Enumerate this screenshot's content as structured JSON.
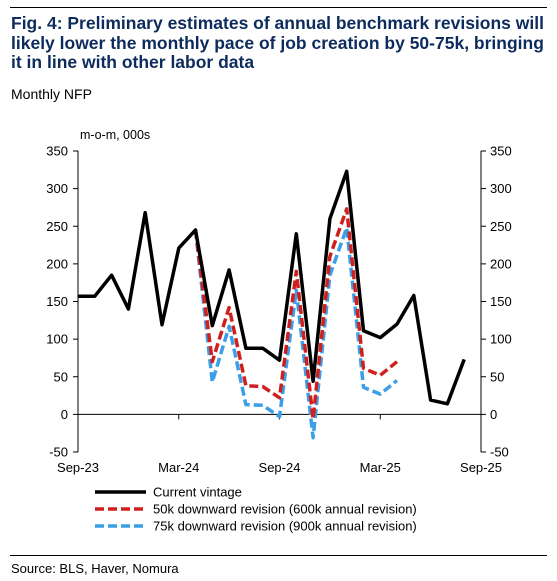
{
  "title": "Fig. 4: Preliminary estimates of annual benchmark revisions will likely lower the monthly pace of job creation by 50-75k, bringing it in line with other labor data",
  "subtitle": "Monthly NFP",
  "source": "Source: BLS, Haver, Nomura",
  "colors": {
    "title": "#0d2b5c",
    "current": "#000000",
    "rev50": "#d0201e",
    "rev75": "#3a9fe8"
  },
  "chart_data": {
    "type": "line",
    "unit_label": "m-o-m, 000s",
    "ylim": [
      -50,
      350
    ],
    "yticks": [
      -50,
      0,
      50,
      100,
      150,
      200,
      250,
      300,
      350
    ],
    "xlim": [
      "2023-09",
      "2025-09"
    ],
    "xticks": [
      "Sep-23",
      "Mar-24",
      "Sep-24",
      "Mar-25",
      "Sep-25"
    ],
    "xtick_months": [
      "2023-09",
      "2024-03",
      "2024-09",
      "2025-03",
      "2025-09"
    ],
    "grid": false,
    "legend_position": "bottom",
    "series": [
      {
        "name": "Current vintage",
        "style": "solid",
        "color": "#000000",
        "points": [
          [
            "2023-09",
            157
          ],
          [
            "2023-10",
            157
          ],
          [
            "2023-11",
            185
          ],
          [
            "2023-12",
            140
          ],
          [
            "2024-01",
            268
          ],
          [
            "2024-02",
            119
          ],
          [
            "2024-03",
            221
          ],
          [
            "2024-04",
            245
          ],
          [
            "2024-05",
            118
          ],
          [
            "2024-06",
            192
          ],
          [
            "2024-07",
            88
          ],
          [
            "2024-08",
            88
          ],
          [
            "2024-09",
            72
          ],
          [
            "2024-10",
            240
          ],
          [
            "2024-11",
            44
          ],
          [
            "2024-12",
            260
          ],
          [
            "2025-01",
            323
          ],
          [
            "2025-02",
            111
          ],
          [
            "2025-03",
            102
          ],
          [
            "2025-04",
            120
          ],
          [
            "2025-05",
            158
          ],
          [
            "2025-06",
            19
          ],
          [
            "2025-07",
            14
          ],
          [
            "2025-08",
            73
          ]
        ]
      },
      {
        "name": "50k downward revision (600k annual revision)",
        "style": "dashed",
        "color": "#d0201e",
        "points": [
          [
            "2024-04",
            245
          ],
          [
            "2024-05",
            70
          ],
          [
            "2024-06",
            142
          ],
          [
            "2024-07",
            38
          ],
          [
            "2024-08",
            37
          ],
          [
            "2024-09",
            22
          ],
          [
            "2024-10",
            190
          ],
          [
            "2024-11",
            -6
          ],
          [
            "2024-12",
            210
          ],
          [
            "2025-01",
            273
          ],
          [
            "2025-02",
            61
          ],
          [
            "2025-03",
            52
          ],
          [
            "2025-04",
            70
          ]
        ]
      },
      {
        "name": "75k downward revision (900k annual revision)",
        "style": "dashed",
        "color": "#3a9fe8",
        "points": [
          [
            "2024-04",
            245
          ],
          [
            "2024-05",
            43
          ],
          [
            "2024-06",
            117
          ],
          [
            "2024-07",
            13
          ],
          [
            "2024-08",
            12
          ],
          [
            "2024-09",
            -3
          ],
          [
            "2024-10",
            165
          ],
          [
            "2024-11",
            -31
          ],
          [
            "2024-12",
            185
          ],
          [
            "2025-01",
            248
          ],
          [
            "2025-02",
            36
          ],
          [
            "2025-03",
            27
          ],
          [
            "2025-04",
            45
          ]
        ]
      }
    ]
  }
}
